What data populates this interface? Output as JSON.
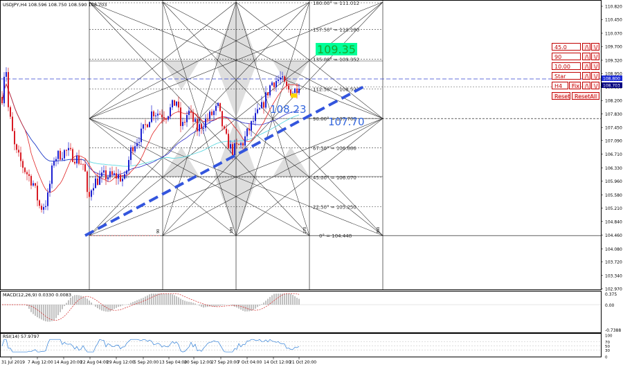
{
  "symbol_info": "USDJPY,H4  108.596 108.750 108.590 108.703",
  "current_price": "108.703",
  "current_price_bg": "#1c2bd6",
  "level_price_tag": "108.800",
  "price_axis": [
    "110.820",
    "110.450",
    "110.070",
    "109.700",
    "109.320",
    "108.950",
    "108.580",
    "108.200",
    "107.830",
    "107.450",
    "107.090",
    "106.710",
    "106.330",
    "105.960",
    "105.580",
    "105.210",
    "104.840",
    "104.460",
    "104.080",
    "103.720",
    "103.340",
    "102.970"
  ],
  "time_axis": [
    "31 Jul 2019",
    "7 Aug 12:00",
    "14 Aug 20:00",
    "22 Aug 04:00",
    "29 Aug 12:00",
    "5 Sep 20:00",
    "13 Sep 04:00",
    "20 Sep 12:00",
    "27 Sep 20:00",
    "7 Oct 04:00",
    "14 Oct 12:00",
    "21 Oct 20:00"
  ],
  "gann_levels": [
    {
      "label": "180.00° = 111.012",
      "price": 111.012
    },
    {
      "label": "157.50° = 110.180",
      "price": 110.18
    },
    {
      "label": "135.00° = 109.352",
      "price": 109.352
    },
    {
      "label": "112.50° = 108.523",
      "price": 108.523
    },
    {
      "label": "90.00° = 107.700",
      "price": 107.7
    },
    {
      "label": "67.50° = 106.886",
      "price": 106.886
    },
    {
      "label": "45.00° = 106.070",
      "price": 106.07
    },
    {
      "label": "22.50° = 105.250",
      "price": 105.25
    },
    {
      "label": "0° = 104.448",
      "price": 104.448
    }
  ],
  "angle_markers": [
    "90",
    "180",
    "270",
    "360"
  ],
  "annotations": [
    {
      "text": "109.35",
      "color": "#1aa52a",
      "bg": "#00ff99"
    },
    {
      "text": "108.23",
      "color": "#3366dd"
    },
    {
      "text": "107.70",
      "color": "#3366dd"
    }
  ],
  "tool_panel": {
    "rows": [
      {
        "value": "45.0",
        "up": "/\\",
        "down": "\\/"
      },
      {
        "value": "90",
        "up": "/\\",
        "down": "\\/"
      },
      {
        "value": "10.00",
        "up": "/\\",
        "down": "\\/"
      },
      {
        "value": "Star",
        "up": "/\\",
        "down": "\\/"
      },
      {
        "value": "H4",
        "mid": "Fix",
        "up": "/\\",
        "down": "\\/"
      }
    ],
    "reset_label": "Reset",
    "reset_all_label": "ResetAll"
  },
  "macd": {
    "label": "MACD(12,26,9) 0.0330 0.0083",
    "axis": [
      "0.375",
      "0.00",
      "-0.7388"
    ]
  },
  "rsi": {
    "label": "RSI(14) 57.9797",
    "axis": [
      "100",
      "70",
      "50",
      "30",
      "0"
    ]
  },
  "colors": {
    "up_candle": "#1b1fd1",
    "down_candle": "#d81b24",
    "ma_fast": "#e02020",
    "ma_slow": "#2b2bc8",
    "ma_cyan": "#5fd8e0",
    "trendline": "#3355dd",
    "grid": "#000000",
    "gann_shade": "#d8d8d8"
  }
}
